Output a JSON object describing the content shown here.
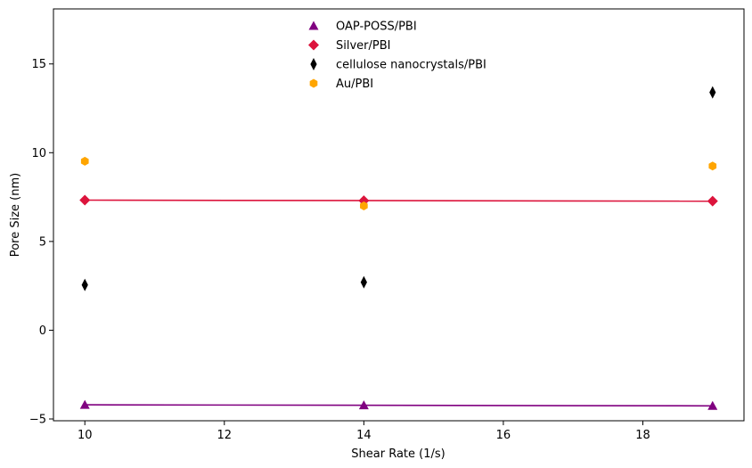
{
  "chart_data": {
    "type": "scatter",
    "xlabel": "Shear Rate (1/s)",
    "ylabel": "Pore Size (nm)",
    "xlim": [
      9.55,
      19.45
    ],
    "ylim": [
      -5.1,
      18.1
    ],
    "x_ticks": [
      10,
      12,
      14,
      16,
      18
    ],
    "y_ticks": [
      -5,
      0,
      5,
      10,
      15
    ],
    "grid": false,
    "legend_position": "top-center",
    "series": [
      {
        "name": "OAP-POSS/PBI",
        "marker": "triangle",
        "color": "#800080",
        "x": [
          10,
          14,
          19
        ],
        "y": [
          -4.2,
          -4.23,
          -4.26
        ],
        "fit_line": true
      },
      {
        "name": "Silver/PBI",
        "marker": "diamond",
        "color": "#dc143c",
        "x": [
          10,
          14,
          19
        ],
        "y": [
          7.33,
          7.3,
          7.27
        ],
        "fit_line": true
      },
      {
        "name": "cellulose nanocrystals/PBI",
        "marker": "thin-diamond",
        "color": "#000000",
        "x": [
          10,
          14,
          19
        ],
        "y": [
          2.55,
          2.7,
          13.4
        ],
        "fit_line": false
      },
      {
        "name": "Au/PBI",
        "marker": "hexagon",
        "color": "#ffa500",
        "x": [
          10,
          14,
          19
        ],
        "y": [
          9.52,
          7.0,
          9.25
        ],
        "fit_line": false
      }
    ]
  }
}
